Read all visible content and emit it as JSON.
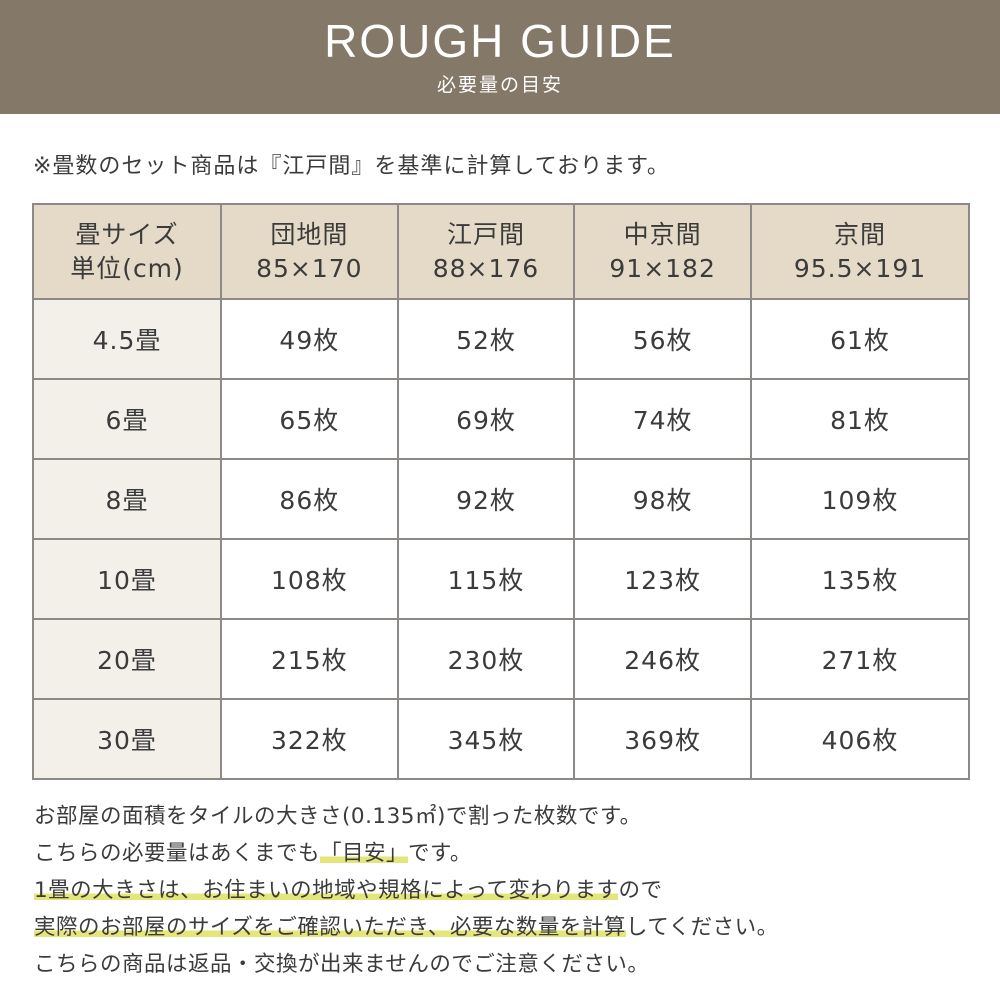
{
  "header": {
    "title": "ROUGH GUIDE",
    "subtitle": "必要量の目安",
    "bg_color": "#847868"
  },
  "note": "※畳数のセット商品は『江戸間』を基準に計算しております。",
  "table": {
    "columns": [
      {
        "line1": "畳サイズ",
        "line2": "単位(cm)"
      },
      {
        "line1": "団地間",
        "line2": "85×170"
      },
      {
        "line1": "江戸間",
        "line2": "88×176"
      },
      {
        "line1": "中京間",
        "line2": "91×182"
      },
      {
        "line1": "京間",
        "line2": "95.5×191"
      }
    ],
    "rows": [
      [
        "4.5畳",
        "49枚",
        "52枚",
        "56枚",
        "61枚"
      ],
      [
        "6畳",
        "65枚",
        "69枚",
        "74枚",
        "81枚"
      ],
      [
        "8畳",
        "86枚",
        "92枚",
        "98枚",
        "109枚"
      ],
      [
        "10畳",
        "108枚",
        "115枚",
        "123枚",
        "135枚"
      ],
      [
        "20畳",
        "215枚",
        "230枚",
        "246枚",
        "271枚"
      ],
      [
        "30畳",
        "322枚",
        "345枚",
        "369枚",
        "406枚"
      ]
    ]
  },
  "footer": {
    "line1": "お部屋の面積をタイルの大きさ(0.135㎡)で割った枚数です。",
    "line2a": "こちらの必要量はあくまでも",
    "line2b": "「目安」",
    "line2c": "です。",
    "line3a": "1畳の大きさは、お住まいの地域や規格によって変わります",
    "line3b": "ので",
    "line4a": "実際のお部屋のサイズをご確認いただき、必要な数量を計算",
    "line4b": "してください。",
    "line5": "こちらの商品は返品・交換が出来ませんのでご注意ください。",
    "highlight_color": "#e5e67a"
  }
}
